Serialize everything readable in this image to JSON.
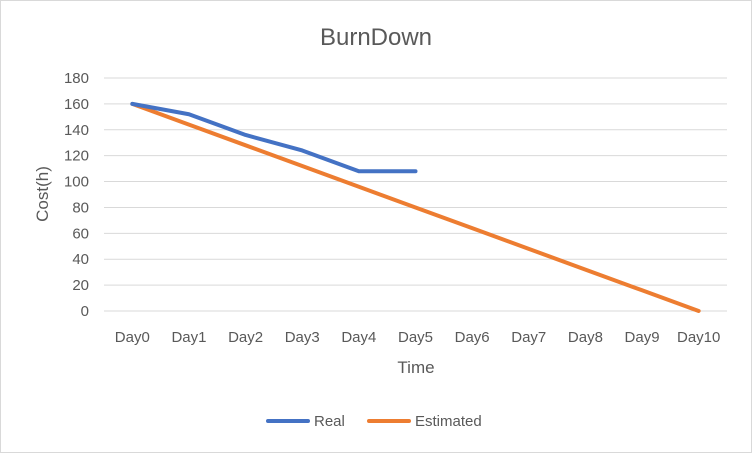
{
  "chart_data": {
    "type": "line",
    "title": "BurnDown",
    "xlabel": "Time",
    "ylabel": "Cost(h)",
    "categories": [
      "Day0",
      "Day1",
      "Day2",
      "Day3",
      "Day4",
      "Day5",
      "Day6",
      "Day7",
      "Day8",
      "Day9",
      "Day10"
    ],
    "ylim": [
      0,
      180
    ],
    "yticks": [
      0,
      20,
      40,
      60,
      80,
      100,
      120,
      140,
      160,
      180
    ],
    "grid": true,
    "legend": "bottom",
    "series": [
      {
        "name": "Real",
        "color": "#4472c4",
        "values": [
          160,
          152,
          136,
          124,
          108,
          108,
          null,
          null,
          null,
          null,
          null
        ]
      },
      {
        "name": "Estimated",
        "color": "#ed7d31",
        "values": [
          160,
          144,
          128,
          112,
          96,
          80,
          64,
          48,
          32,
          16,
          0
        ]
      }
    ]
  }
}
